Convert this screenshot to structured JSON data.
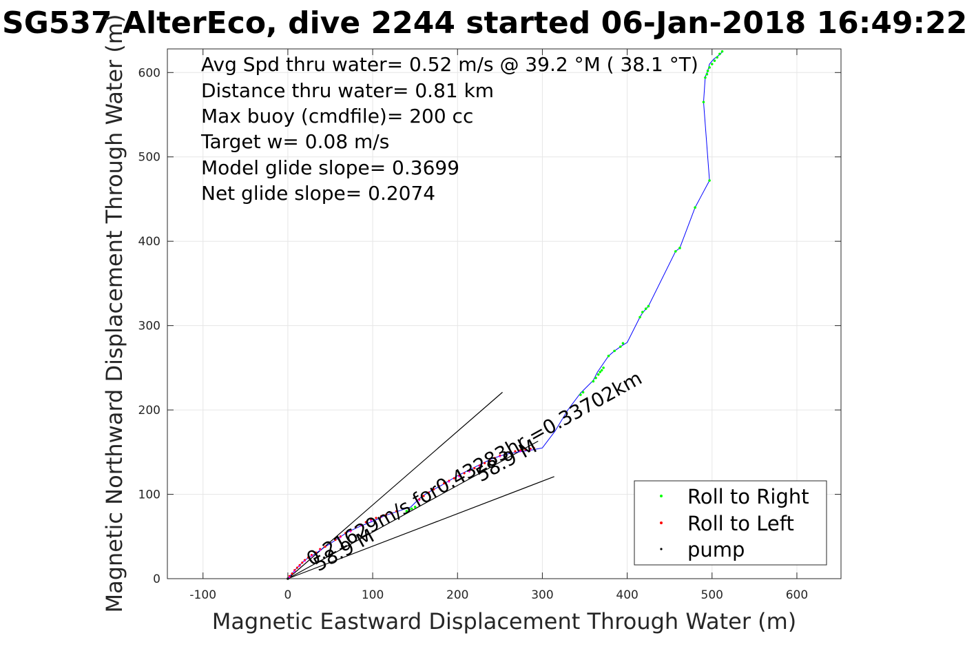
{
  "chart_data": {
    "type": "scatter",
    "title": "SG537 AlterEco, dive 2244 started 06-Jan-2018 16:49:22",
    "xlabel": "Magnetic Eastward Displacement Through Water (m)",
    "ylabel": "Magnetic Northward Displacement Through Water (m)",
    "xlim": [
      -142,
      652
    ],
    "ylim": [
      0,
      628
    ],
    "xticks": [
      -100,
      0,
      100,
      200,
      300,
      400,
      500,
      600
    ],
    "yticks": [
      0,
      100,
      200,
      300,
      400,
      500,
      600
    ],
    "xtick_labels": [
      "-100",
      "0",
      "100",
      "200",
      "300",
      "400",
      "500",
      "600"
    ],
    "ytick_labels": [
      "0",
      "100",
      "200",
      "300",
      "400",
      "500",
      "600"
    ],
    "grid": true,
    "legend_position": "bottom-right",
    "annotations": [
      "Avg Spd thru water=  0.52 m/s @  39.2 °M ( 38.1 °T)",
      "Distance thru water=  0.81 km",
      "Max buoy (cmdfile)= 200 cc",
      "Target w= 0.08 m/s",
      "Model glide slope= 0.3699",
      "Net glide slope= 0.2074"
    ],
    "current_label": "0.21629m/s for0.43283hr =0.33702km",
    "heading_labels": [
      "58.9 M",
      "58.9 M"
    ],
    "colors": {
      "track": "#0000ff",
      "roll_right": "#00ff00",
      "roll_left": "#ff0000",
      "pump": "#000000",
      "current": "#ff00ff",
      "cone": "#000000"
    },
    "track": {
      "x": [
        0,
        10,
        20,
        30,
        40,
        55,
        70,
        85,
        100,
        115,
        130,
        145,
        155,
        165,
        180,
        200,
        220,
        240,
        255,
        270,
        285,
        300,
        315,
        330,
        345,
        360,
        365,
        378,
        385,
        395,
        400,
        415,
        418,
        425,
        457,
        462,
        480,
        497,
        490,
        492,
        495,
        497,
        502,
        510,
        512
      ],
      "y": [
        0,
        12,
        22,
        28,
        35,
        45,
        55,
        62,
        68,
        75,
        80,
        85,
        95,
        102,
        110,
        122,
        132,
        142,
        147,
        150,
        152,
        155,
        175,
        200,
        220,
        235,
        245,
        264,
        270,
        277,
        280,
        310,
        315,
        323,
        388,
        392,
        440,
        472,
        565,
        595,
        602,
        610,
        616,
        622,
        625
      ]
    },
    "series": [
      {
        "name": "Roll to Right",
        "x": [
          140,
          143,
          146,
          150,
          345,
          348,
          360,
          363,
          366,
          368,
          370,
          372,
          378,
          385,
          392,
          395,
          415,
          418,
          422,
          425,
          457,
          462,
          480,
          497,
          490,
          492,
          494,
          495,
          497,
          500,
          503,
          506,
          509,
          512
        ],
        "y": [
          80,
          82,
          83,
          85,
          218,
          221,
          234,
          238,
          242,
          245,
          247,
          250,
          264,
          270,
          275,
          279,
          310,
          316,
          320,
          323,
          388,
          392,
          440,
          472,
          565,
          594,
          598,
          602,
          606,
          610,
          614,
          618,
          622,
          625
        ]
      },
      {
        "name": "Roll to Left",
        "x": [
          2,
          5,
          8,
          11,
          14,
          17,
          20,
          24,
          28,
          33,
          38,
          44,
          50,
          56,
          62,
          68,
          74,
          80,
          86,
          92,
          98,
          104,
          110,
          116,
          122,
          128,
          155,
          160,
          166,
          172,
          178,
          184,
          190,
          196,
          202,
          208,
          214,
          220,
          226,
          232,
          238,
          244,
          250,
          256,
          262,
          268,
          274,
          280,
          286,
          290
        ],
        "y": [
          3,
          6,
          10,
          13,
          16,
          19,
          22,
          25,
          28,
          31,
          35,
          38,
          42,
          46,
          50,
          54,
          57,
          61,
          64,
          67,
          70,
          72,
          74,
          76,
          78,
          80,
          94,
          98,
          102,
          106,
          110,
          113,
          116,
          119,
          122,
          125,
          128,
          131,
          134,
          137,
          140,
          143,
          146,
          148,
          150,
          151,
          152,
          153,
          154,
          155
        ]
      },
      {
        "name": "pump",
        "x": [
          0
        ],
        "y": [
          0
        ]
      }
    ],
    "current_line": {
      "x": [
        0,
        295
      ],
      "y": [
        0,
        163
      ]
    },
    "cone_lines": [
      {
        "x": [
          0,
          253
        ],
        "y": [
          0,
          221
        ]
      },
      {
        "x": [
          0,
          314
        ],
        "y": [
          0,
          121
        ]
      }
    ]
  }
}
